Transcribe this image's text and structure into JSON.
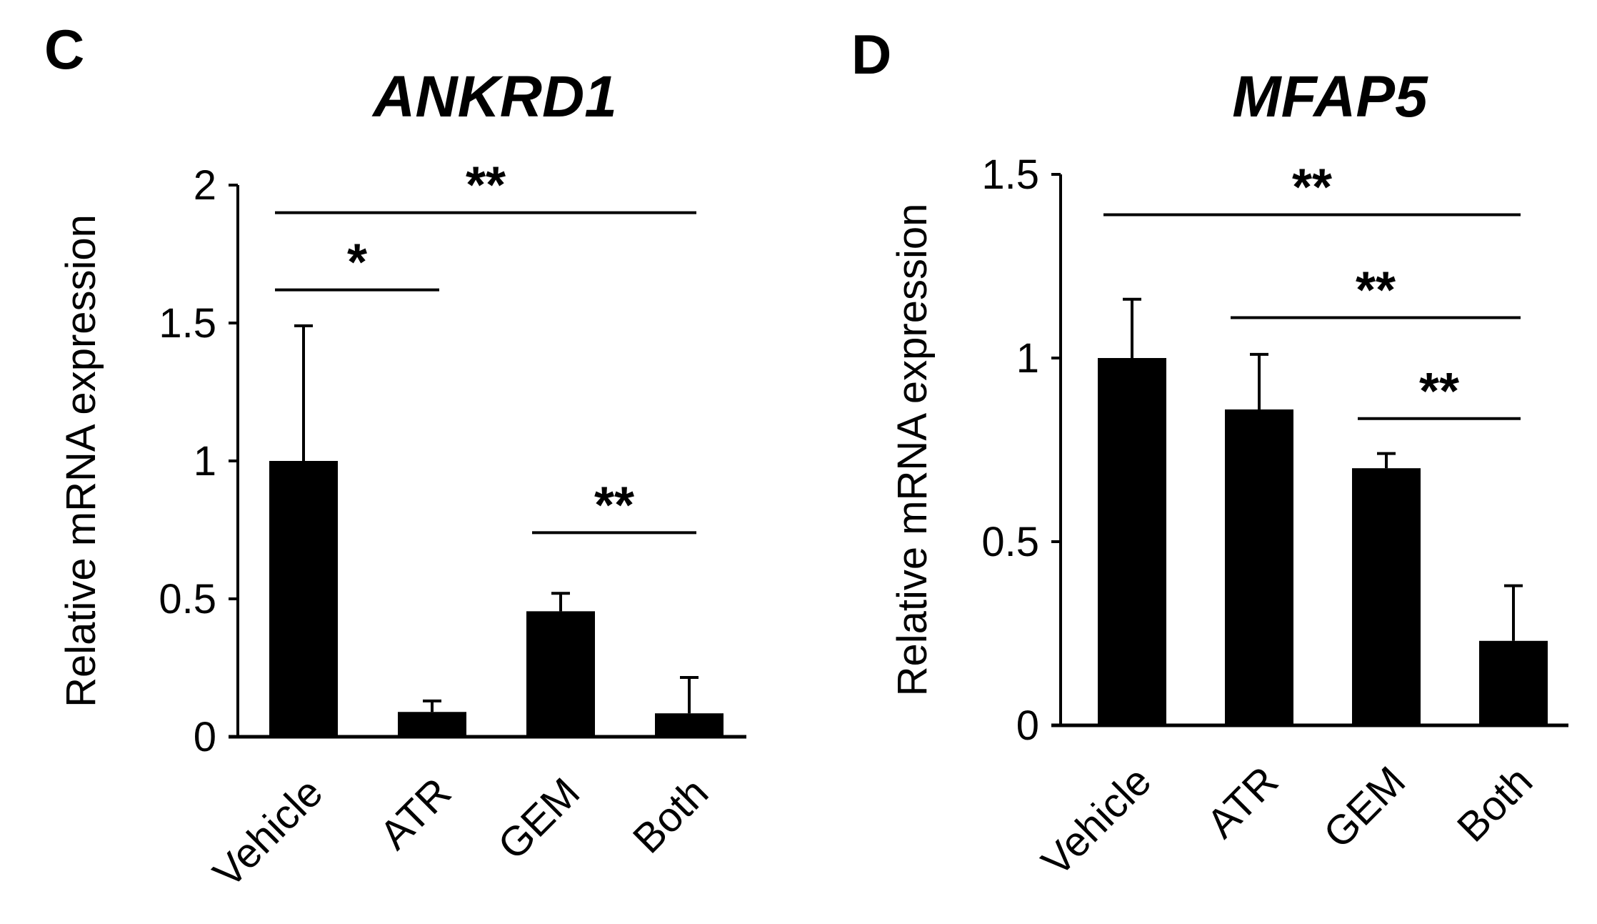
{
  "chart_data": [
    {
      "panel": "C",
      "type": "bar",
      "title": "ANKRD1",
      "ylabel": "Relative mRNA expression",
      "xlabel": "",
      "categories": [
        "Vehicle",
        "ATR",
        "GEM",
        "Both"
      ],
      "values": [
        1.0,
        0.09,
        0.455,
        0.085
      ],
      "errors": [
        0.49,
        0.04,
        0.065,
        0.13
      ],
      "ylim": [
        0,
        2
      ],
      "yticks": [
        0,
        0.5,
        1,
        1.5,
        2
      ],
      "ytick_labels": [
        "0",
        "0.5",
        "1",
        "1.5",
        "2"
      ],
      "bar_color": "#000000",
      "grid": false,
      "significance": [
        {
          "from": "Vehicle",
          "to": "Both",
          "label": "**",
          "y": 1.9
        },
        {
          "from": "Vehicle",
          "to": "ATR",
          "label": "*",
          "y": 1.62
        },
        {
          "from": "GEM",
          "to": "Both",
          "label": "**",
          "y": 0.74
        }
      ]
    },
    {
      "panel": "D",
      "type": "bar",
      "title": "MFAP5",
      "ylabel": "Relative mRNA expression",
      "xlabel": "",
      "categories": [
        "Vehicle",
        "ATR",
        "GEM",
        "Both"
      ],
      "values": [
        1.0,
        0.86,
        0.7,
        0.23
      ],
      "errors": [
        0.16,
        0.15,
        0.04,
        0.15
      ],
      "ylim": [
        0,
        1.5
      ],
      "yticks": [
        0,
        0.5,
        1,
        1.5
      ],
      "ytick_labels": [
        "0",
        "0.5",
        "1",
        "1.5"
      ],
      "bar_color": "#000000",
      "grid": false,
      "significance": [
        {
          "from": "Vehicle",
          "to": "Both",
          "label": "**",
          "y": 1.39
        },
        {
          "from": "ATR",
          "to": "Both",
          "label": "**",
          "y": 1.11
        },
        {
          "from": "GEM",
          "to": "Both",
          "label": "**",
          "y": 0.835
        }
      ]
    }
  ]
}
